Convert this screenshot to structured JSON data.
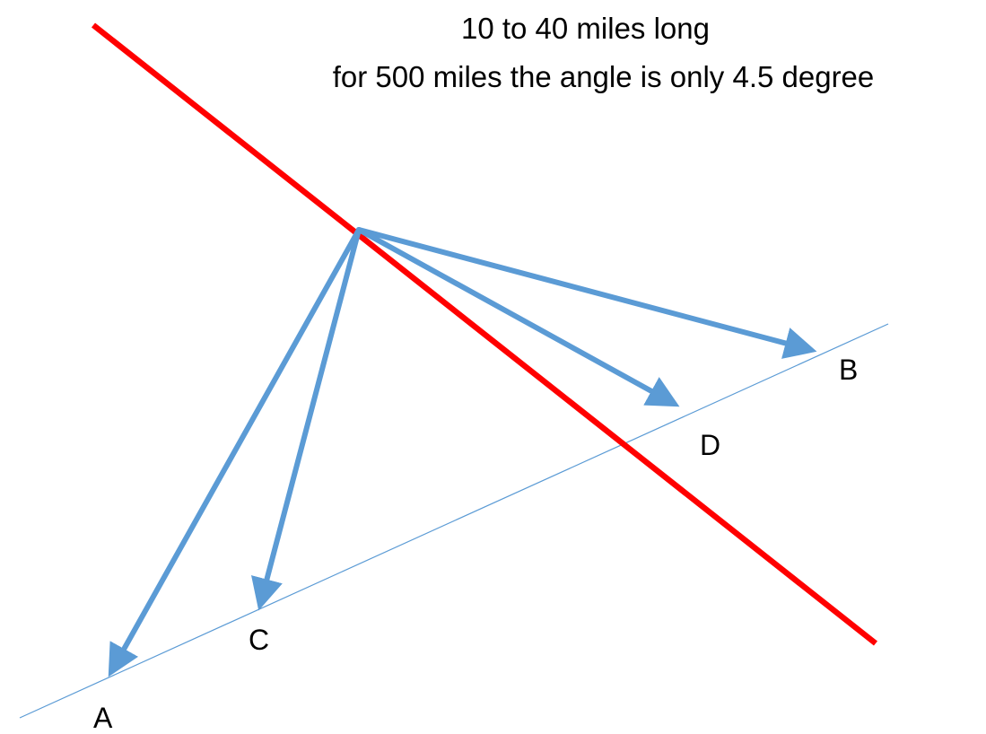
{
  "caption": {
    "line1": "10 to 40 miles long",
    "line2": "for 500 miles the angle is only 4.5 degree"
  },
  "points": {
    "a": "A",
    "b": "B",
    "c": "C",
    "d": "D"
  },
  "colors": {
    "red_line": "#ff0000",
    "arrow": "#5b9bd5",
    "thin_line": "#5b9bd5",
    "text": "#000000"
  }
}
